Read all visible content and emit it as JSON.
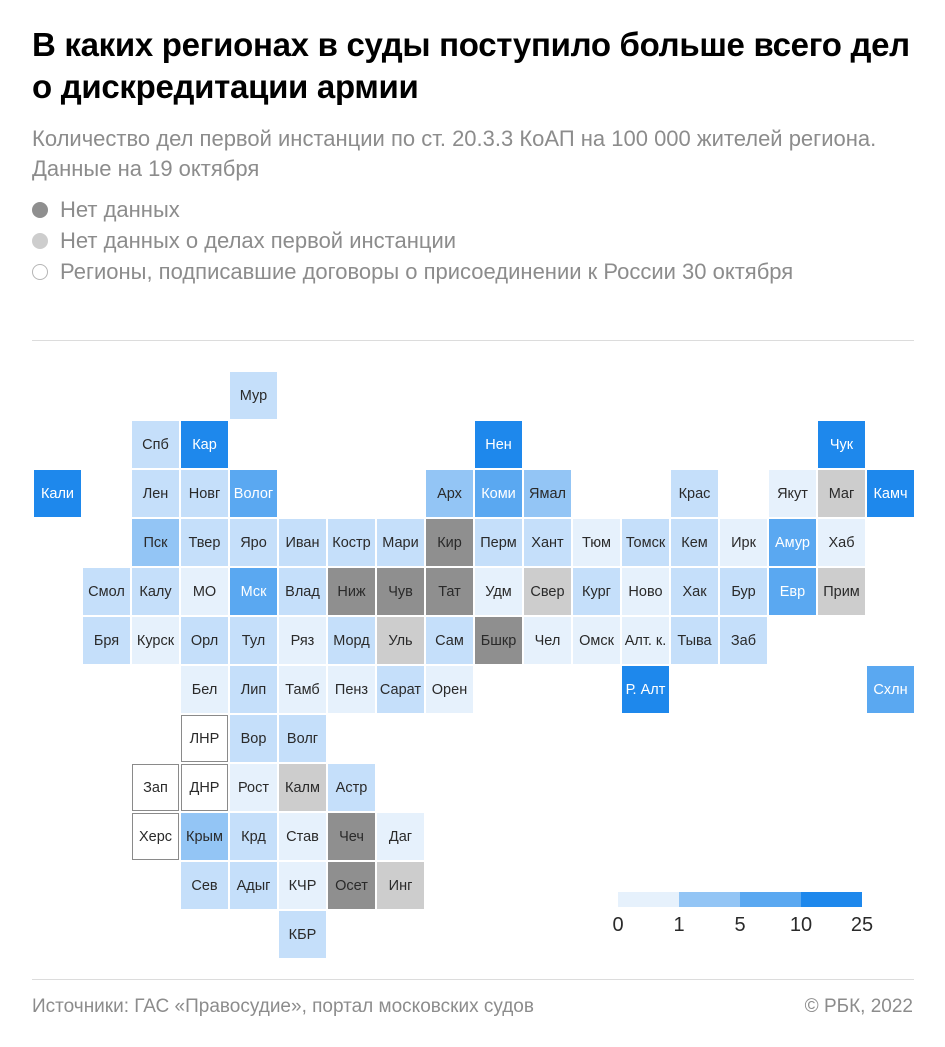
{
  "title": "В каких регионах в суды поступило больше всего дел о дискредитации армии",
  "subtitle": "Количество дел первой инстанции по ст. 20.3.3 КоАП на 100 000 жителей региона. Данные на 19 октября",
  "legend": [
    {
      "label": "Нет данных",
      "style": "dark"
    },
    {
      "label": "Нет данных о делах первой инстанции",
      "style": "light"
    },
    {
      "label": "Регионы, подписавшие договоры о присоединении к России 30 октября",
      "style": "outline"
    }
  ],
  "colors": {
    "bin0": "#e6f1fc",
    "bin1": "#c5dffa",
    "bin2": "#93c5f5",
    "bin3": "#5aa8f1",
    "bin4": "#1e88ec",
    "no_data": "#8f8f8f",
    "no_first_instance": "#cdcdcd"
  },
  "scale": {
    "ticks": [
      "0",
      "1",
      "5",
      "10",
      "25"
    ]
  },
  "regions": [
    {
      "label": "Мур",
      "row": 0,
      "col": 4,
      "status": "bin1"
    },
    {
      "label": "Спб",
      "row": 1,
      "col": 2,
      "status": "bin1"
    },
    {
      "label": "Кар",
      "row": 1,
      "col": 3,
      "status": "bin4"
    },
    {
      "label": "Нен",
      "row": 1,
      "col": 9,
      "status": "bin4"
    },
    {
      "label": "Чук",
      "row": 1,
      "col": 16,
      "status": "bin4"
    },
    {
      "label": "Кали",
      "row": 2,
      "col": 0,
      "status": "bin4"
    },
    {
      "label": "Лен",
      "row": 2,
      "col": 2,
      "status": "bin1"
    },
    {
      "label": "Новг",
      "row": 2,
      "col": 3,
      "status": "bin1"
    },
    {
      "label": "Волог",
      "row": 2,
      "col": 4,
      "status": "bin3"
    },
    {
      "label": "Арх",
      "row": 2,
      "col": 8,
      "status": "bin2"
    },
    {
      "label": "Коми",
      "row": 2,
      "col": 9,
      "status": "bin3"
    },
    {
      "label": "Ямал",
      "row": 2,
      "col": 10,
      "status": "bin2"
    },
    {
      "label": "Крас",
      "row": 2,
      "col": 13,
      "status": "bin1"
    },
    {
      "label": "Якут",
      "row": 2,
      "col": 15,
      "status": "bin0"
    },
    {
      "label": "Маг",
      "row": 2,
      "col": 16,
      "status": "no_first_instance"
    },
    {
      "label": "Камч",
      "row": 2,
      "col": 17,
      "status": "bin4"
    },
    {
      "label": "Пск",
      "row": 3,
      "col": 2,
      "status": "bin2"
    },
    {
      "label": "Твер",
      "row": 3,
      "col": 3,
      "status": "bin1"
    },
    {
      "label": "Яро",
      "row": 3,
      "col": 4,
      "status": "bin1"
    },
    {
      "label": "Иван",
      "row": 3,
      "col": 5,
      "status": "bin1"
    },
    {
      "label": "Костр",
      "row": 3,
      "col": 6,
      "status": "bin1"
    },
    {
      "label": "Мари",
      "row": 3,
      "col": 7,
      "status": "bin1"
    },
    {
      "label": "Кир",
      "row": 3,
      "col": 8,
      "status": "no_data"
    },
    {
      "label": "Перм",
      "row": 3,
      "col": 9,
      "status": "bin1"
    },
    {
      "label": "Хант",
      "row": 3,
      "col": 10,
      "status": "bin1"
    },
    {
      "label": "Тюм",
      "row": 3,
      "col": 11,
      "status": "bin0"
    },
    {
      "label": "Томск",
      "row": 3,
      "col": 12,
      "status": "bin1"
    },
    {
      "label": "Кем",
      "row": 3,
      "col": 13,
      "status": "bin1"
    },
    {
      "label": "Ирк",
      "row": 3,
      "col": 14,
      "status": "bin0"
    },
    {
      "label": "Амур",
      "row": 3,
      "col": 15,
      "status": "bin3"
    },
    {
      "label": "Хаб",
      "row": 3,
      "col": 16,
      "status": "bin0"
    },
    {
      "label": "Смол",
      "row": 4,
      "col": 1,
      "status": "bin1"
    },
    {
      "label": "Калу",
      "row": 4,
      "col": 2,
      "status": "bin1"
    },
    {
      "label": "МО",
      "row": 4,
      "col": 3,
      "status": "bin0"
    },
    {
      "label": "Мск",
      "row": 4,
      "col": 4,
      "status": "bin3"
    },
    {
      "label": "Влад",
      "row": 4,
      "col": 5,
      "status": "bin1"
    },
    {
      "label": "Ниж",
      "row": 4,
      "col": 6,
      "status": "no_data"
    },
    {
      "label": "Чув",
      "row": 4,
      "col": 7,
      "status": "no_data"
    },
    {
      "label": "Тат",
      "row": 4,
      "col": 8,
      "status": "no_data"
    },
    {
      "label": "Удм",
      "row": 4,
      "col": 9,
      "status": "bin0"
    },
    {
      "label": "Свер",
      "row": 4,
      "col": 10,
      "status": "no_first_instance"
    },
    {
      "label": "Кург",
      "row": 4,
      "col": 11,
      "status": "bin1"
    },
    {
      "label": "Ново",
      "row": 4,
      "col": 12,
      "status": "bin0"
    },
    {
      "label": "Хак",
      "row": 4,
      "col": 13,
      "status": "bin1"
    },
    {
      "label": "Бур",
      "row": 4,
      "col": 14,
      "status": "bin1"
    },
    {
      "label": "Евр",
      "row": 4,
      "col": 15,
      "status": "bin3"
    },
    {
      "label": "Прим",
      "row": 4,
      "col": 16,
      "status": "no_first_instance"
    },
    {
      "label": "Бря",
      "row": 5,
      "col": 1,
      "status": "bin1"
    },
    {
      "label": "Курск",
      "row": 5,
      "col": 2,
      "status": "bin0"
    },
    {
      "label": "Орл",
      "row": 5,
      "col": 3,
      "status": "bin1"
    },
    {
      "label": "Тул",
      "row": 5,
      "col": 4,
      "status": "bin1"
    },
    {
      "label": "Ряз",
      "row": 5,
      "col": 5,
      "status": "bin0"
    },
    {
      "label": "Морд",
      "row": 5,
      "col": 6,
      "status": "bin1"
    },
    {
      "label": "Уль",
      "row": 5,
      "col": 7,
      "status": "no_first_instance"
    },
    {
      "label": "Сам",
      "row": 5,
      "col": 8,
      "status": "bin1"
    },
    {
      "label": "Бшкр",
      "row": 5,
      "col": 9,
      "status": "no_data"
    },
    {
      "label": "Чел",
      "row": 5,
      "col": 10,
      "status": "bin0"
    },
    {
      "label": "Омск",
      "row": 5,
      "col": 11,
      "status": "bin0"
    },
    {
      "label": "Алт. к.",
      "row": 5,
      "col": 12,
      "status": "bin0"
    },
    {
      "label": "Тыва",
      "row": 5,
      "col": 13,
      "status": "bin1"
    },
    {
      "label": "Заб",
      "row": 5,
      "col": 14,
      "status": "bin1"
    },
    {
      "label": "Бел",
      "row": 6,
      "col": 3,
      "status": "bin0"
    },
    {
      "label": "Лип",
      "row": 6,
      "col": 4,
      "status": "bin1"
    },
    {
      "label": "Тамб",
      "row": 6,
      "col": 5,
      "status": "bin0"
    },
    {
      "label": "Пенз",
      "row": 6,
      "col": 6,
      "status": "bin0"
    },
    {
      "label": "Сарат",
      "row": 6,
      "col": 7,
      "status": "bin1"
    },
    {
      "label": "Орен",
      "row": 6,
      "col": 8,
      "status": "bin0"
    },
    {
      "label": "Р. Алт",
      "row": 6,
      "col": 12,
      "status": "bin4"
    },
    {
      "label": "Схлн",
      "row": 6,
      "col": 17,
      "status": "bin3"
    },
    {
      "label": "ЛНР",
      "row": 7,
      "col": 3,
      "status": "outline"
    },
    {
      "label": "Вор",
      "row": 7,
      "col": 4,
      "status": "bin1"
    },
    {
      "label": "Волг",
      "row": 7,
      "col": 5,
      "status": "bin1"
    },
    {
      "label": "Зап",
      "row": 8,
      "col": 2,
      "status": "outline"
    },
    {
      "label": "ДНР",
      "row": 8,
      "col": 3,
      "status": "outline"
    },
    {
      "label": "Рост",
      "row": 8,
      "col": 4,
      "status": "bin0"
    },
    {
      "label": "Калм",
      "row": 8,
      "col": 5,
      "status": "no_first_instance"
    },
    {
      "label": "Астр",
      "row": 8,
      "col": 6,
      "status": "bin1"
    },
    {
      "label": "Херс",
      "row": 9,
      "col": 2,
      "status": "outline"
    },
    {
      "label": "Крым",
      "row": 9,
      "col": 3,
      "status": "bin2"
    },
    {
      "label": "Крд",
      "row": 9,
      "col": 4,
      "status": "bin1"
    },
    {
      "label": "Став",
      "row": 9,
      "col": 5,
      "status": "bin0"
    },
    {
      "label": "Чеч",
      "row": 9,
      "col": 6,
      "status": "no_data"
    },
    {
      "label": "Даг",
      "row": 9,
      "col": 7,
      "status": "bin0"
    },
    {
      "label": "Сев",
      "row": 10,
      "col": 3,
      "status": "bin1"
    },
    {
      "label": "Адыг",
      "row": 10,
      "col": 4,
      "status": "bin1"
    },
    {
      "label": "КЧР",
      "row": 10,
      "col": 5,
      "status": "bin0"
    },
    {
      "label": "Осет",
      "row": 10,
      "col": 6,
      "status": "no_data"
    },
    {
      "label": "Инг",
      "row": 10,
      "col": 7,
      "status": "no_first_instance"
    },
    {
      "label": "КБР",
      "row": 11,
      "col": 5,
      "status": "bin1"
    }
  ],
  "footer": {
    "source": "Источники: ГАС «Правосудие», портал московских судов",
    "copyright": "© РБК, 2022"
  }
}
